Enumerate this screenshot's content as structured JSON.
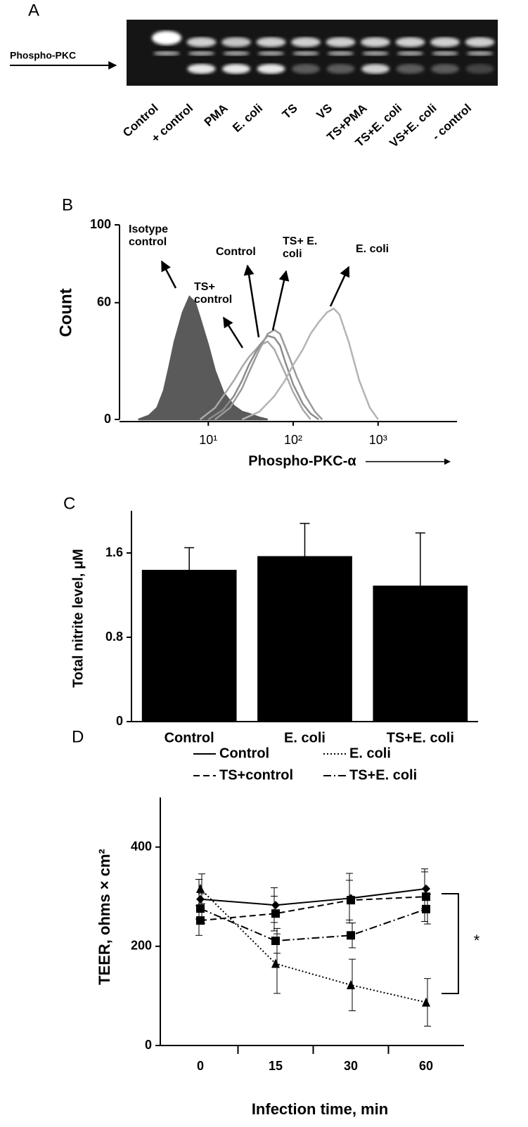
{
  "chart_data": [
    {
      "type": "gel",
      "panel_label": "A",
      "marker_label": "Phospho-PKC",
      "categories": [
        "Control",
        "+ control",
        "PMA",
        "E. coli",
        "TS",
        "VS",
        "TS+PMA",
        "TS+E. coli",
        "VS+E. coli",
        "- control"
      ]
    },
    {
      "type": "line",
      "panel_label": "B",
      "xlabel": "Phospho-PKC-α",
      "ylabel": "Count",
      "log_x": true,
      "xlim": [
        0.9,
        8500
      ],
      "xticks": [
        {
          "value": 10,
          "label": "10¹"
        },
        {
          "value": 100,
          "label": "10²"
        },
        {
          "value": 1000,
          "label": "10³"
        }
      ],
      "ylim": [
        0,
        100
      ],
      "yticks": [
        0,
        60,
        100
      ],
      "series": [
        {
          "name": "Isotype control",
          "color": "#5a5a5a",
          "filled": true,
          "x": [
            1.5,
            2,
            2.5,
            3,
            3.5,
            4,
            5,
            6,
            7,
            8,
            10,
            12,
            15,
            20,
            25,
            30,
            40,
            50
          ],
          "values": [
            0,
            2,
            6,
            15,
            28,
            40,
            55,
            63,
            60,
            52,
            38,
            25,
            14,
            7,
            4,
            3,
            1,
            0
          ]
        },
        {
          "name": "TS+ control",
          "color": "#a8a8a8",
          "x": [
            8,
            12,
            15,
            20,
            25,
            30,
            40,
            50,
            60,
            80,
            100,
            130,
            160
          ],
          "values": [
            0,
            6,
            12,
            20,
            27,
            32,
            38,
            40,
            36,
            24,
            14,
            5,
            0
          ]
        },
        {
          "name": "Control",
          "color": "#8c8c8c",
          "x": [
            10,
            15,
            20,
            25,
            30,
            40,
            50,
            60,
            70,
            80,
            100,
            130,
            160,
            200
          ],
          "values": [
            0,
            5,
            12,
            20,
            28,
            38,
            43,
            42,
            38,
            30,
            18,
            8,
            3,
            0
          ]
        },
        {
          "name": "TS+ E. coli",
          "color": "#9a9a9a",
          "x": [
            12,
            18,
            25,
            30,
            40,
            50,
            60,
            70,
            90,
            110,
            140,
            180,
            220
          ],
          "values": [
            0,
            6,
            16,
            24,
            36,
            44,
            46,
            44,
            32,
            22,
            12,
            4,
            0
          ]
        },
        {
          "name": "E. coli",
          "color": "#b4b4b4",
          "x": [
            25,
            40,
            60,
            80,
            100,
            130,
            160,
            200,
            250,
            300,
            350,
            450,
            600,
            800,
            1000
          ],
          "values": [
            0,
            4,
            12,
            20,
            28,
            36,
            44,
            50,
            55,
            57,
            54,
            40,
            20,
            6,
            0
          ]
        }
      ]
    },
    {
      "type": "bar",
      "panel_label": "C",
      "ylabel": "Total nitrite level, μM",
      "categories": [
        "Control",
        "E. coli",
        "TS+E. coli"
      ],
      "values": [
        1.44,
        1.57,
        1.29
      ],
      "errors": [
        0.21,
        0.31,
        0.5
      ],
      "color": "#000000",
      "ylim": [
        0,
        2
      ],
      "yticks": [
        0,
        0.8,
        1.6
      ]
    },
    {
      "type": "line",
      "panel_label": "D",
      "xlabel": "Infection time, min",
      "ylabel": "TEER, ohms × cm²",
      "categories": [
        "0",
        "15",
        "30",
        "60"
      ],
      "ylim": [
        0,
        500
      ],
      "yticks": [
        0,
        200,
        400
      ],
      "legend": "top",
      "annotation": "*",
      "series": [
        {
          "name": "Control",
          "color": "#000000",
          "marker": "diamond",
          "dash": "solid",
          "values": [
            295,
            283,
            297,
            316
          ],
          "errors": [
            40,
            35,
            50,
            40
          ]
        },
        {
          "name": "E. coli",
          "color": "#000000",
          "marker": "triangle",
          "dash": "dotted",
          "values": [
            316,
            165,
            122,
            87
          ],
          "errors": [
            30,
            60,
            52,
            48
          ]
        },
        {
          "name": "TS+control",
          "color": "#000000",
          "marker": "square",
          "dash": "dashed",
          "values": [
            252,
            266,
            293,
            300
          ],
          "errors": [
            30,
            35,
            40,
            50
          ]
        },
        {
          "name": "TS+E. coli",
          "color": "#000000",
          "marker": "square",
          "dash": "dashdot",
          "values": [
            276,
            211,
            222,
            275
          ],
          "errors": [
            30,
            25,
            25,
            30
          ]
        }
      ]
    }
  ]
}
